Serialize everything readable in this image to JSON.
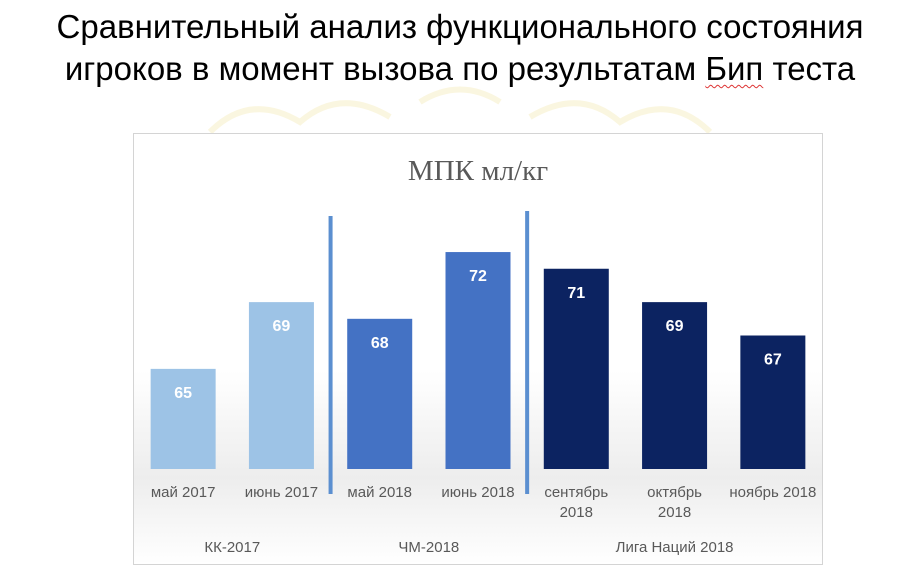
{
  "slide": {
    "title_line1": "Сравнительный анализ функционального состояния",
    "title_line2_a": "игроков в момент вызова по результатам ",
    "title_line2_b": "Бип",
    "title_line2_c": " теста"
  },
  "chart_data": {
    "type": "bar",
    "title": "МПК мл/кг",
    "categories": [
      [
        "май 2017"
      ],
      [
        "июнь 2017"
      ],
      [
        "май 2018"
      ],
      [
        "июнь 2018"
      ],
      [
        "сентябрь",
        "2018"
      ],
      [
        "октябрь",
        "2018"
      ],
      [
        "ноябрь 2018"
      ]
    ],
    "values": [
      65,
      69,
      68,
      72,
      71,
      69,
      67
    ],
    "groups": [
      {
        "label": "КК-2017",
        "from": 0,
        "to": 1
      },
      {
        "label": "ЧМ-2018",
        "from": 2,
        "to": 3
      },
      {
        "label": "Лига Наций 2018",
        "from": 4,
        "to": 6
      }
    ],
    "separators_after": [
      1,
      3
    ],
    "bar_colors": [
      "#9dc3e6",
      "#9dc3e6",
      "#4472c4",
      "#4472c4",
      "#0c2361",
      "#0c2361",
      "#0c2361"
    ],
    "separator_color": "#5b8fd0",
    "ylim": [
      59,
      75
    ],
    "grid": false,
    "legend": "none",
    "data_labels": true
  }
}
